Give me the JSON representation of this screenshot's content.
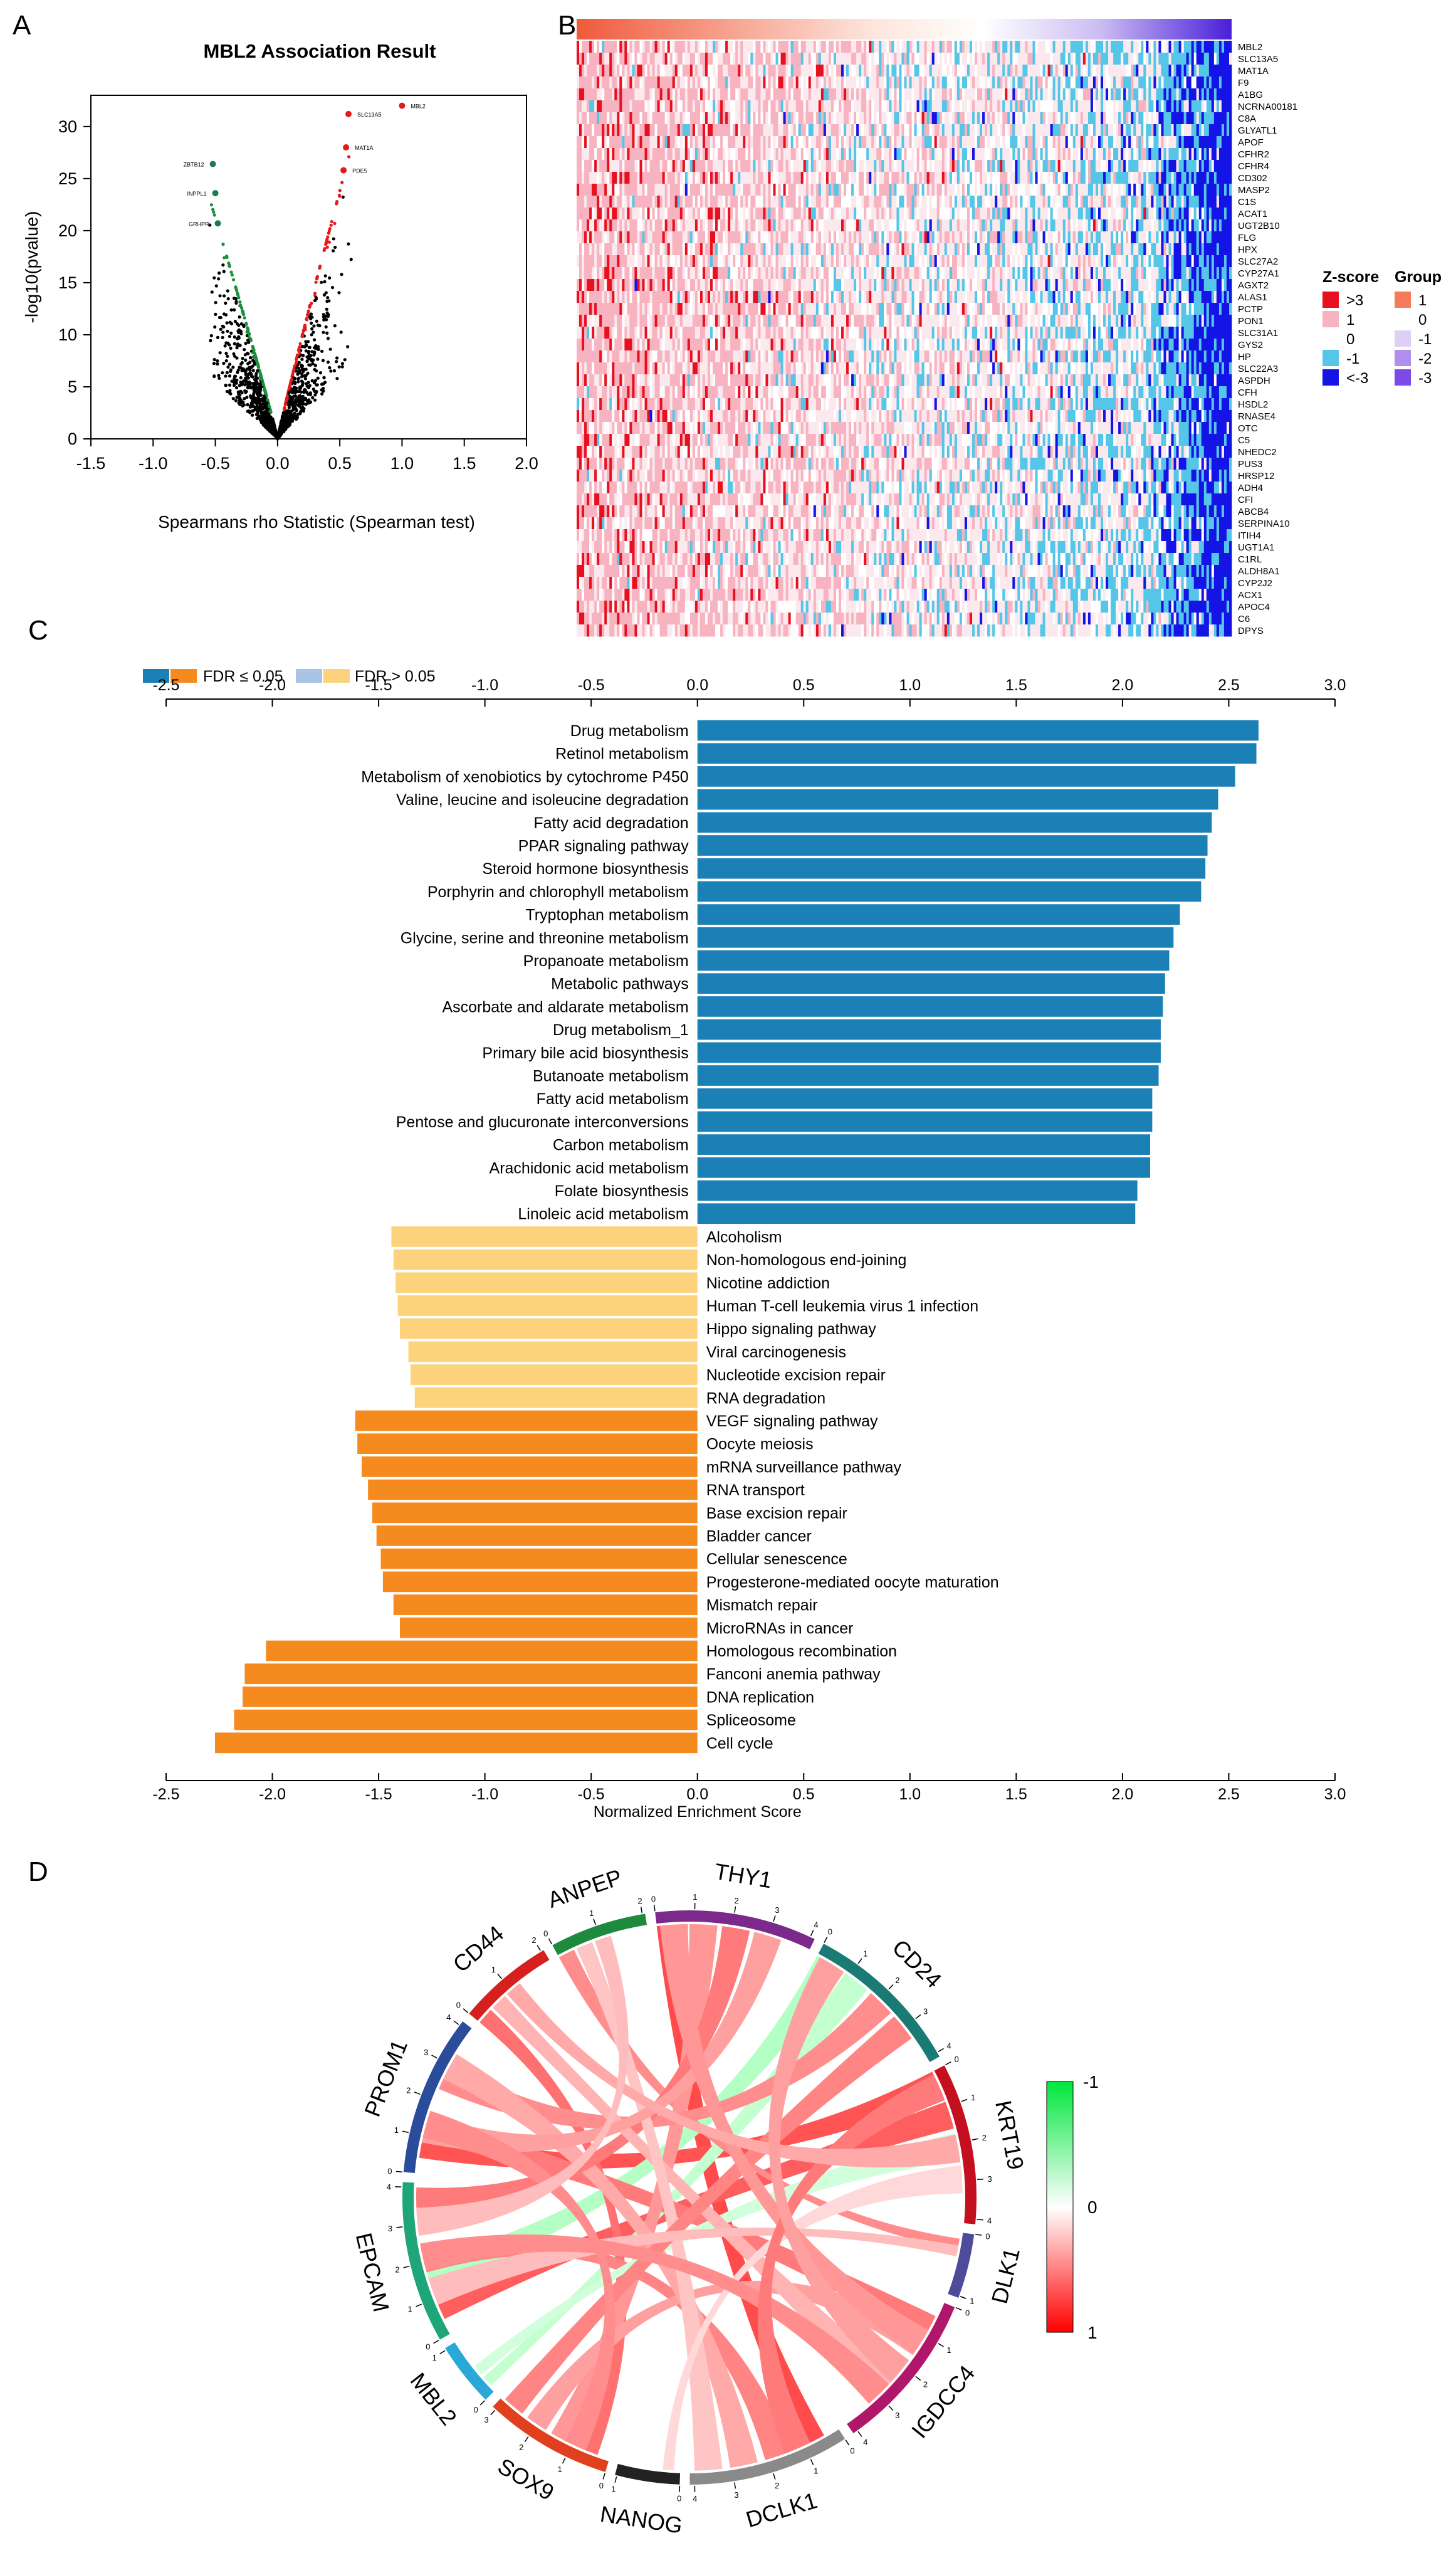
{
  "panel_labels": {
    "a": "A",
    "b": "B",
    "c": "C",
    "d": "D"
  },
  "chart_data": [
    {
      "id": "A",
      "type": "scatter",
      "title": "MBL2 Association Result",
      "xlabel": "Spearmans rho Statistic (Spearman test)",
      "ylabel": "-log10(pvalue)",
      "xlim": [
        -1.5,
        2.0
      ],
      "ylim": [
        0,
        33
      ],
      "xticks": [
        "-1.5",
        "-1.0",
        "-0.5",
        "0.0",
        "0.5",
        "1.0",
        "1.5",
        "2.0"
      ],
      "xtick_values": [
        -1.5,
        -1.0,
        -0.5,
        0.0,
        0.5,
        1.0,
        1.5,
        2.0
      ],
      "yticks": [
        "0",
        "5",
        "10",
        "15",
        "20",
        "25",
        "30"
      ],
      "ytick_values": [
        0,
        5,
        10,
        15,
        20,
        25,
        30
      ],
      "colors": {
        "positive": "#e41a1c",
        "negative": "#1b8f3a",
        "neutral": "#000000",
        "top_neg": "#1f7a4d"
      },
      "highlighted": [
        {
          "label": "MBL2",
          "x": 1.0,
          "y": 32.0,
          "sign": "pos"
        },
        {
          "label": "SLC13A5",
          "x": 0.57,
          "y": 31.2,
          "sign": "pos"
        },
        {
          "label": "MAT1A",
          "x": 0.55,
          "y": 28.0,
          "sign": "pos"
        },
        {
          "label": "PDE5",
          "x": 0.53,
          "y": 25.8,
          "sign": "pos"
        },
        {
          "label": "ZBTB12",
          "x": -0.52,
          "y": 26.4,
          "sign": "neg"
        },
        {
          "label": "INPPL1",
          "x": -0.5,
          "y": 23.6,
          "sign": "neg"
        },
        {
          "label": "GRHPR",
          "x": -0.48,
          "y": 20.7,
          "sign": "neg"
        }
      ]
    },
    {
      "id": "B",
      "type": "heatmap",
      "genes": [
        "MBL2",
        "SLC13A5",
        "MAT1A",
        "F9",
        "A1BG",
        "NCRNA00181",
        "C8A",
        "GLYATL1",
        "APOF",
        "CFHR2",
        "CFHR4",
        "CD302",
        "MASP2",
        "C1S",
        "ACAT1",
        "UGT2B10",
        "FLG",
        "HPX",
        "SLC27A2",
        "CYP27A1",
        "AGXT2",
        "ALAS1",
        "PCTP",
        "PON1",
        "SLC31A1",
        "GYS2",
        "HP",
        "SLC22A3",
        "ASPDH",
        "CFH",
        "HSDL2",
        "RNASE4",
        "OTC",
        "C5",
        "NHEDC2",
        "PUS3",
        "HRSP12",
        "ADH4",
        "CFI",
        "ABCB4",
        "SERPINA10",
        "ITIH4",
        "UGT1A1",
        "C1RL",
        "ALDH8A1",
        "CYP2J2",
        "ACX1",
        "APOC4",
        "C6",
        "DPYS"
      ],
      "legend_zscore_title": "Z-score",
      "legend_zscore": [
        {
          "label": ">3",
          "color": "#e8101e"
        },
        {
          "label": "1",
          "color": "#f7b3c0"
        },
        {
          "label": "0",
          "color": "#ffffff"
        },
        {
          "label": "-1",
          "color": "#56c6e8"
        },
        {
          "label": "<-3",
          "color": "#1414e6"
        }
      ],
      "legend_group_title": "Group",
      "legend_group": [
        {
          "label": "1",
          "color": "#f57c5a"
        },
        {
          "label": "0",
          "color": "#ffffff"
        },
        {
          "label": "-1",
          "color": "#ddd0f5"
        },
        {
          "label": "-2",
          "color": "#b08ef0"
        },
        {
          "label": "-3",
          "color": "#7b4ae8"
        }
      ]
    },
    {
      "id": "C",
      "type": "bar",
      "orientation": "horizontal",
      "xlabel": "Normalized Enrichment Score",
      "xlim": [
        -2.5,
        3.0
      ],
      "xticks": [
        "-2.5",
        "-2.0",
        "-1.5",
        "-1.0",
        "-0.5",
        "0.0",
        "0.5",
        "1.0",
        "1.5",
        "2.0",
        "2.5",
        "3.0"
      ],
      "xtick_values": [
        -2.5,
        -2.0,
        -1.5,
        -1.0,
        -0.5,
        0.0,
        0.5,
        1.0,
        1.5,
        2.0,
        2.5,
        3.0
      ],
      "legend": [
        {
          "label": "FDR ≤ 0.05",
          "colors": [
            "#1a80b6",
            "#f58a1f"
          ]
        },
        {
          "label": "FDR > 0.05",
          "colors": [
            "#a9c4e4",
            "#fcd27d"
          ]
        }
      ],
      "colors": {
        "pos_sig": "#1a80b6",
        "neg_sig": "#f58a1f",
        "neg_nonsig": "#fcd27d"
      },
      "categories": [
        "Drug metabolism",
        "Retinol metabolism",
        "Metabolism of xenobiotics by cytochrome P450",
        "Valine, leucine and isoleucine degradation",
        "Fatty acid degradation",
        "PPAR signaling pathway",
        "Steroid hormone biosynthesis",
        "Porphyrin and chlorophyll metabolism",
        "Tryptophan metabolism",
        "Glycine, serine and threonine metabolism",
        "Propanoate metabolism",
        "Metabolic pathways",
        "Ascorbate and aldarate metabolism",
        "Drug metabolism_1",
        "Primary bile acid biosynthesis",
        "Butanoate metabolism",
        "Fatty acid metabolism",
        "Pentose and glucuronate interconversions",
        "Carbon metabolism",
        "Arachidonic acid metabolism",
        "Folate biosynthesis",
        "Linoleic acid metabolism",
        "Alcoholism",
        "Non-homologous end-joining",
        "Nicotine addiction",
        "Human T-cell leukemia virus 1 infection",
        "Hippo signaling pathway",
        "Viral carcinogenesis",
        "Nucleotide excision repair",
        "RNA degradation",
        "VEGF signaling pathway",
        "Oocyte meiosis",
        "mRNA surveillance pathway",
        "RNA transport",
        "Base excision repair",
        "Bladder cancer",
        "Cellular senescence",
        "Progesterone-mediated oocyte maturation",
        "Mismatch repair",
        "MicroRNAs in cancer",
        "Homologous recombination",
        "Fanconi anemia pathway",
        "DNA replication",
        "Spliceosome",
        "Cell cycle"
      ],
      "values": [
        2.64,
        2.63,
        2.53,
        2.45,
        2.42,
        2.4,
        2.39,
        2.37,
        2.27,
        2.24,
        2.22,
        2.2,
        2.19,
        2.18,
        2.18,
        2.17,
        2.14,
        2.14,
        2.13,
        2.13,
        2.07,
        2.06,
        -1.44,
        -1.43,
        -1.42,
        -1.41,
        -1.4,
        -1.36,
        -1.35,
        -1.33,
        -1.61,
        -1.6,
        -1.58,
        -1.55,
        -1.53,
        -1.51,
        -1.49,
        -1.48,
        -1.43,
        -1.4,
        -2.03,
        -2.13,
        -2.14,
        -2.18,
        -2.27
      ],
      "significant": [
        true,
        true,
        true,
        true,
        true,
        true,
        true,
        true,
        true,
        true,
        true,
        true,
        true,
        true,
        true,
        true,
        true,
        true,
        true,
        true,
        true,
        true,
        false,
        false,
        false,
        false,
        false,
        false,
        false,
        false,
        true,
        true,
        true,
        true,
        true,
        true,
        true,
        true,
        true,
        true,
        true,
        true,
        true,
        true,
        true
      ]
    },
    {
      "id": "D",
      "type": "chord",
      "sectors": [
        {
          "name": "THY1",
          "color": "#7b2a8c",
          "ticks": [
            "0",
            "1",
            "2",
            "3",
            "4"
          ]
        },
        {
          "name": "CD24",
          "color": "#1a7a74",
          "ticks": [
            "0",
            "1",
            "2",
            "3",
            "4"
          ]
        },
        {
          "name": "KRT19",
          "color": "#c4101e",
          "ticks": [
            "0",
            "1",
            "2",
            "3",
            "4"
          ]
        },
        {
          "name": "DLK1",
          "color": "#4d4c9a",
          "ticks": [
            "0",
            "1"
          ]
        },
        {
          "name": "IGDCC4",
          "color": "#b0176b",
          "ticks": [
            "0",
            "1",
            "2",
            "3",
            "4"
          ]
        },
        {
          "name": "DCLK1",
          "color": "#8a8a8a",
          "ticks": [
            "0",
            "1",
            "2",
            "3",
            "4"
          ]
        },
        {
          "name": "NANOG",
          "color": "#222222",
          "ticks": [
            "0",
            "1"
          ]
        },
        {
          "name": "SOX9",
          "color": "#e0401e",
          "ticks": [
            "0",
            "1",
            "2",
            "3"
          ]
        },
        {
          "name": "MBL2",
          "color": "#2aa8d8",
          "ticks": [
            "0",
            "1"
          ]
        },
        {
          "name": "EPCAM",
          "color": "#1fa57a",
          "ticks": [
            "0",
            "1",
            "2",
            "3",
            "4"
          ]
        },
        {
          "name": "PROM1",
          "color": "#2b4c9a",
          "ticks": [
            "0",
            "1",
            "2",
            "3",
            "4"
          ]
        },
        {
          "name": "CD44",
          "color": "#d6201e",
          "ticks": [
            "0",
            "1",
            "2"
          ]
        },
        {
          "name": "ANPEP",
          "color": "#1e8a3e",
          "ticks": [
            "0",
            "1",
            "2"
          ]
        }
      ],
      "colorbar": {
        "labels": [
          "-1",
          "0",
          "1"
        ],
        "colors": [
          "#00e63c",
          "#ffffff",
          "#ff0000"
        ]
      },
      "links": [
        {
          "from": "THY1",
          "to": "DCLK1",
          "value": 0.95
        },
        {
          "from": "KRT19",
          "to": "PROM1",
          "value": 0.9
        },
        {
          "from": "KRT19",
          "to": "EPCAM",
          "value": 0.85
        },
        {
          "from": "CD24",
          "to": "EPCAM",
          "value": -0.5
        },
        {
          "from": "CD24",
          "to": "MBL2",
          "value": -0.4
        },
        {
          "from": "PROM1",
          "to": "IGDCC4",
          "value": 0.7
        },
        {
          "from": "CD44",
          "to": "SOX9",
          "value": 0.75
        },
        {
          "from": "ANPEP",
          "to": "DLK1",
          "value": 0.6
        },
        {
          "from": "THY1",
          "to": "SOX9",
          "value": 0.55
        },
        {
          "from": "EPCAM",
          "to": "DCLK1",
          "value": 0.65
        },
        {
          "from": "CD24",
          "to": "PROM1",
          "value": 0.6
        },
        {
          "from": "KRT19",
          "to": "MBL2",
          "value": -0.3
        },
        {
          "from": "IGDCC4",
          "to": "SOX9",
          "value": 0.5
        },
        {
          "from": "PROM1",
          "to": "DCLK1",
          "value": 0.45
        },
        {
          "from": "THY1",
          "to": "EPCAM",
          "value": 0.7
        },
        {
          "from": "CD44",
          "to": "IGDCC4",
          "value": 0.4
        },
        {
          "from": "ANPEP",
          "to": "DCLK1",
          "value": 0.3
        },
        {
          "from": "KRT19",
          "to": "NANOG",
          "value": 0.2
        },
        {
          "from": "THY1",
          "to": "PROM1",
          "value": 0.5
        },
        {
          "from": "CD24",
          "to": "SOX9",
          "value": 0.65
        },
        {
          "from": "DLK1",
          "to": "EPCAM",
          "value": 0.35
        },
        {
          "from": "IGDCC4",
          "to": "EPCAM",
          "value": 0.6
        },
        {
          "from": "THY1",
          "to": "IGDCC4",
          "value": 0.55
        },
        {
          "from": "KRT19",
          "to": "DCLK1",
          "value": 0.7
        },
        {
          "from": "CD44",
          "to": "KRT19",
          "value": 0.45
        },
        {
          "from": "PROM1",
          "to": "SOX9",
          "value": 0.6
        },
        {
          "from": "CD24",
          "to": "IGDCC4",
          "value": 0.5
        },
        {
          "from": "ANPEP",
          "to": "EPCAM",
          "value": 0.35
        }
      ]
    }
  ]
}
